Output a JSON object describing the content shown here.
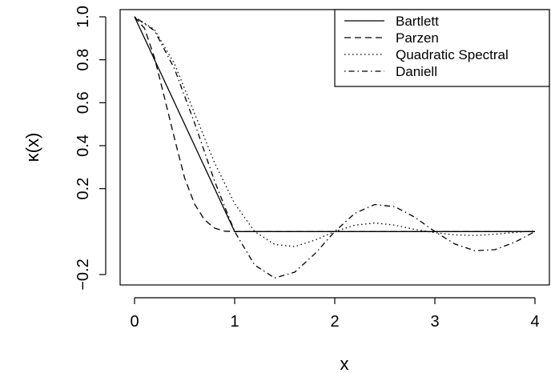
{
  "chart_data": {
    "type": "line",
    "title": "",
    "xlabel": "x",
    "ylabel": "κ(x)",
    "xlim": [
      0,
      4
    ],
    "ylim": [
      -0.2,
      1.0
    ],
    "xticks": [
      0,
      1,
      2,
      3,
      4
    ],
    "xtick_labels": [
      "0",
      "1",
      "2",
      "3",
      "4"
    ],
    "yticks": [
      -0.2,
      0.2,
      0.4,
      0.6,
      0.8,
      1.0
    ],
    "ytick_labels": [
      "−0.2",
      "0.2",
      "0.4",
      "0.6",
      "0.8",
      "1.0"
    ],
    "grid": false,
    "legend": {
      "position": "top-right",
      "entries": [
        "Bartlett",
        "Parzen",
        "Quadratic Spectral",
        "Daniell"
      ]
    },
    "series": [
      {
        "name": "Bartlett",
        "style": "solid",
        "x": [
          0,
          1,
          1.5,
          2,
          2.5,
          3,
          3.5,
          4
        ],
        "y": [
          1,
          0,
          0,
          0,
          0,
          0,
          0,
          0
        ]
      },
      {
        "name": "Parzen",
        "style": "dashed",
        "x": [
          0,
          0.1,
          0.2,
          0.3,
          0.4,
          0.5,
          0.6,
          0.7,
          0.8,
          0.9,
          1.0,
          2.0,
          3.0,
          4.0
        ],
        "y": [
          1,
          0.946,
          0.808,
          0.622,
          0.432,
          0.25,
          0.128,
          0.054,
          0.016,
          0.002,
          0,
          0,
          0,
          0
        ]
      },
      {
        "name": "Quadratic Spectral",
        "style": "dotted",
        "x": [
          0,
          0.2,
          0.4,
          0.6,
          0.8,
          1.0,
          1.2,
          1.4,
          1.6,
          1.8,
          2.0,
          2.2,
          2.4,
          2.6,
          2.8,
          3.0,
          3.2,
          3.4,
          3.6,
          3.8,
          4.0
        ],
        "y": [
          1,
          0.94,
          0.78,
          0.55,
          0.32,
          0.13,
          0.0,
          -0.06,
          -0.07,
          -0.04,
          0.0,
          0.03,
          0.04,
          0.03,
          0.01,
          -0.005,
          -0.015,
          -0.018,
          -0.012,
          -0.004,
          0.003
        ]
      },
      {
        "name": "Daniell",
        "style": "dashdot",
        "x": [
          0,
          0.2,
          0.4,
          0.6,
          0.8,
          1.0,
          1.2,
          1.4,
          1.6,
          1.8,
          2.0,
          2.2,
          2.4,
          2.6,
          2.8,
          3.0,
          3.2,
          3.4,
          3.6,
          3.8,
          4.0
        ],
        "y": [
          1,
          0.935,
          0.757,
          0.505,
          0.234,
          0,
          -0.156,
          -0.216,
          -0.189,
          -0.104,
          0,
          0.085,
          0.126,
          0.116,
          0.067,
          0,
          -0.058,
          -0.089,
          -0.084,
          -0.049,
          0
        ]
      }
    ]
  }
}
